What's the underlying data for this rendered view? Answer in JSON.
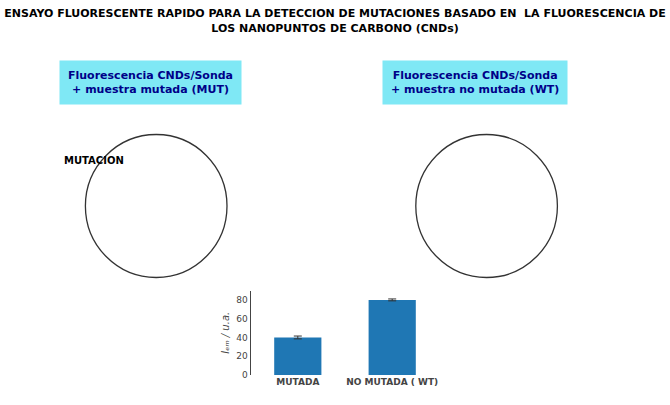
{
  "chart_data": {
    "type": "bar",
    "title": "ENSAYO FLUORESCENTE RAPIDO PARA LA DETECCION DE MUTACIONES BASADO EN  LA FLUORESCENCIA DE",
    "subtitle": "LOS NANOPUNTOS DE CARBONO (CNDs)",
    "categories": [
      "MUTADA",
      "NO MUTADA ( WT)"
    ],
    "values": [
      40,
      80
    ],
    "errors": [
      1.5,
      1.0
    ],
    "ylabel": "Iₑₘ / u.a.",
    "ylim": [
      0,
      90
    ],
    "yticks": [
      0,
      20,
      40,
      60,
      80
    ],
    "grid": false,
    "annotations": [
      "Fluorescencia CNDs/Sonda\n+ muestra mutada (MUT)",
      "Fluorescencia CNDs/Sonda\n+ muestra no mutada (WT)",
      "MUTACION"
    ]
  }
}
